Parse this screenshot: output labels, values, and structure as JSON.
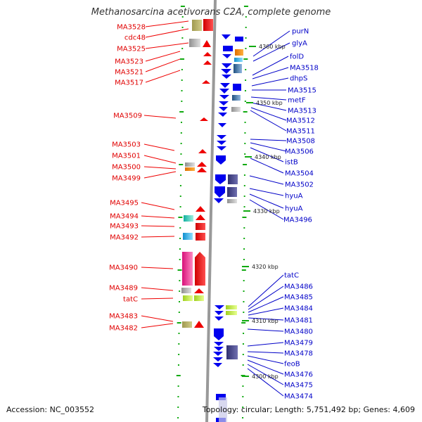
{
  "title": "Methanosarcina acetivorans C2A, complete genome",
  "footer": {
    "accession": "Accession: NC_003552",
    "summary": "Topology: circular; Length: 5,751,492 bp; Genes: 4,609"
  },
  "colors": {
    "reverse_strand": "#ee0000",
    "forward_strand": "#0000ee",
    "reverse_label": "#e00000",
    "forward_label": "#0000c8",
    "backbone": "#999999"
  },
  "axis_labels": [
    "4360 kbp",
    "4350 kbp",
    "4340 kbp",
    "4330 kbp",
    "4320 kbp",
    "4310 kbp",
    "4300 kbp"
  ],
  "left_genes": [
    "MA3528",
    "cdc48",
    "MA3525",
    "MA3523",
    "MA3521",
    "MA3517",
    "MA3509",
    "MA3503",
    "MA3501",
    "MA3500",
    "MA3499",
    "MA3495",
    "MA3494",
    "MA3493",
    "MA3492",
    "MA3490",
    "MA3489",
    "tatC",
    "MA3483",
    "MA3482"
  ],
  "right_genes": [
    "purN",
    "glyA",
    "folD",
    "MA3518",
    "dhpS",
    "MA3515",
    "metF",
    "MA3513",
    "MA3512",
    "MA3511",
    "MA3508",
    "MA3506",
    "istB",
    "MA3504",
    "MA3502",
    "hyuA",
    "hyuA",
    "MA3496",
    "tatC",
    "MA3486",
    "MA3485",
    "MA3484",
    "MA3481",
    "MA3480",
    "MA3479",
    "MA3478",
    "feoB",
    "MA3476",
    "MA3475",
    "MA3474"
  ]
}
